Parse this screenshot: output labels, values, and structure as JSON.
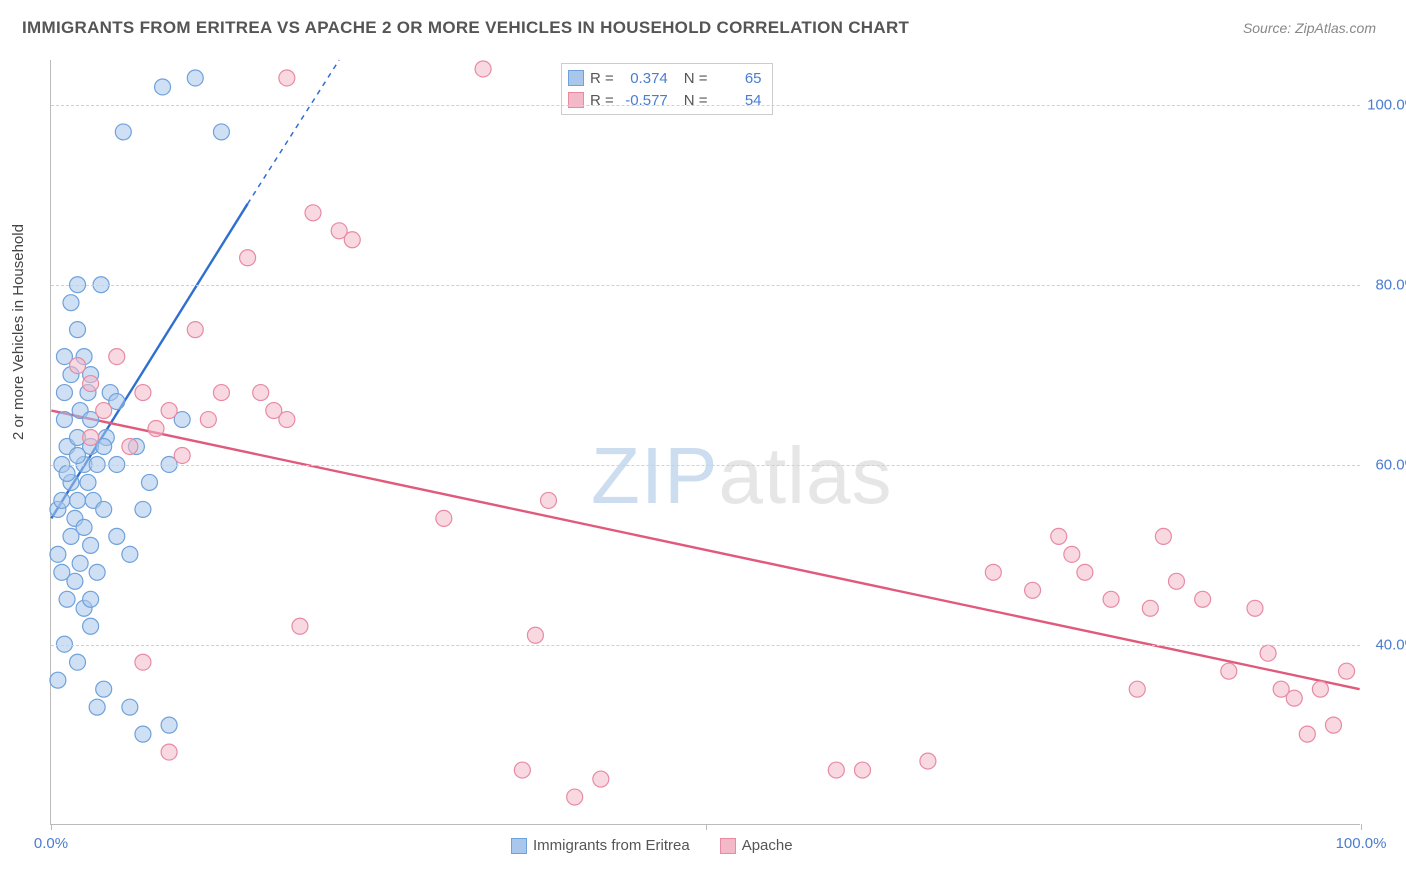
{
  "title": "IMMIGRANTS FROM ERITREA VS APACHE 2 OR MORE VEHICLES IN HOUSEHOLD CORRELATION CHART",
  "source": "Source: ZipAtlas.com",
  "y_axis_label": "2 or more Vehicles in Household",
  "watermark_a": "ZIP",
  "watermark_b": "atlas",
  "chart": {
    "type": "scatter",
    "xlim": [
      0,
      100
    ],
    "ylim": [
      20,
      105
    ],
    "y_ticks": [
      40,
      60,
      80,
      100
    ],
    "y_tick_labels": [
      "40.0%",
      "60.0%",
      "80.0%",
      "100.0%"
    ],
    "x_ticks": [
      0,
      50,
      100
    ],
    "x_tick_labels_shown": {
      "0": "0.0%",
      "100": "100.0%"
    },
    "grid_color": "#d0d0d0",
    "axis_color": "#bbbbbb",
    "background_color": "#ffffff",
    "marker_radius": 8,
    "marker_stroke_width": 1.2,
    "trend_line_width": 2.4,
    "series": [
      {
        "name": "Immigrants from Eritrea",
        "fill_color": "#a8c7eb",
        "stroke_color": "#6fa1db",
        "fill_opacity": 0.55,
        "R": "0.374",
        "N": "65",
        "trend": {
          "x1": 0,
          "y1": 54,
          "x2": 15,
          "y2": 89,
          "dashed_x2": 22,
          "dashed_y2": 105,
          "color": "#2e6fd1"
        },
        "points": [
          [
            0.5,
            55
          ],
          [
            0.5,
            50
          ],
          [
            0.8,
            48
          ],
          [
            0.8,
            60
          ],
          [
            1,
            65
          ],
          [
            1,
            68
          ],
          [
            1,
            72
          ],
          [
            1.2,
            45
          ],
          [
            1.2,
            62
          ],
          [
            1.5,
            58
          ],
          [
            1.5,
            52
          ],
          [
            1.5,
            70
          ],
          [
            1.8,
            54
          ],
          [
            1.8,
            47
          ],
          [
            2,
            63
          ],
          [
            2,
            75
          ],
          [
            2,
            80
          ],
          [
            2,
            56
          ],
          [
            2.2,
            49
          ],
          [
            2.2,
            66
          ],
          [
            2.5,
            60
          ],
          [
            2.5,
            53
          ],
          [
            2.5,
            44
          ],
          [
            2.8,
            68
          ],
          [
            2.8,
            58
          ],
          [
            3,
            62
          ],
          [
            3,
            51
          ],
          [
            3,
            45
          ],
          [
            3.2,
            56
          ],
          [
            3.5,
            48
          ],
          [
            3.5,
            60
          ],
          [
            3.8,
            80
          ],
          [
            4,
            55
          ],
          [
            4.2,
            63
          ],
          [
            4.5,
            68
          ],
          [
            5,
            52
          ],
          [
            5,
            60
          ],
          [
            5.5,
            97
          ],
          [
            6,
            50
          ],
          [
            6.5,
            62
          ],
          [
            7,
            55
          ],
          [
            7.5,
            58
          ],
          [
            8.5,
            102
          ],
          [
            9,
            60
          ],
          [
            10,
            65
          ],
          [
            11,
            103
          ],
          [
            13,
            97
          ],
          [
            0.5,
            36
          ],
          [
            1,
            40
          ],
          [
            2,
            38
          ],
          [
            3,
            42
          ],
          [
            3.5,
            33
          ],
          [
            4,
            35
          ],
          [
            6,
            33
          ],
          [
            7,
            30
          ],
          [
            9,
            31
          ],
          [
            3,
            70
          ],
          [
            4,
            62
          ],
          [
            5,
            67
          ],
          [
            1.5,
            78
          ],
          [
            2.5,
            72
          ],
          [
            0.8,
            56
          ],
          [
            1.2,
            59
          ],
          [
            2,
            61
          ],
          [
            3,
            65
          ]
        ]
      },
      {
        "name": "Apache",
        "fill_color": "#f4b9c8",
        "stroke_color": "#e88aa2",
        "fill_opacity": 0.55,
        "R": "-0.577",
        "N": "54",
        "trend": {
          "x1": 0,
          "y1": 66,
          "x2": 100,
          "y2": 35,
          "color": "#e05a7c"
        },
        "points": [
          [
            2,
            71
          ],
          [
            3,
            69
          ],
          [
            3,
            63
          ],
          [
            4,
            66
          ],
          [
            5,
            72
          ],
          [
            6,
            62
          ],
          [
            7,
            68
          ],
          [
            8,
            64
          ],
          [
            9,
            66
          ],
          [
            10,
            61
          ],
          [
            11,
            75
          ],
          [
            12,
            65
          ],
          [
            13,
            68
          ],
          [
            15,
            83
          ],
          [
            16,
            68
          ],
          [
            17,
            66
          ],
          [
            18,
            65
          ],
          [
            19,
            42
          ],
          [
            20,
            88
          ],
          [
            22,
            86
          ],
          [
            23,
            85
          ],
          [
            18,
            103
          ],
          [
            9,
            28
          ],
          [
            7,
            38
          ],
          [
            30,
            54
          ],
          [
            33,
            104
          ],
          [
            36,
            26
          ],
          [
            37,
            41
          ],
          [
            38,
            56
          ],
          [
            40,
            23
          ],
          [
            42,
            25
          ],
          [
            60,
            26
          ],
          [
            62,
            26
          ],
          [
            67,
            27
          ],
          [
            72,
            48
          ],
          [
            75,
            46
          ],
          [
            77,
            52
          ],
          [
            78,
            50
          ],
          [
            79,
            48
          ],
          [
            81,
            45
          ],
          [
            83,
            35
          ],
          [
            84,
            44
          ],
          [
            85,
            52
          ],
          [
            86,
            47
          ],
          [
            88,
            45
          ],
          [
            90,
            37
          ],
          [
            92,
            44
          ],
          [
            93,
            39
          ],
          [
            94,
            35
          ],
          [
            95,
            34
          ],
          [
            96,
            30
          ],
          [
            97,
            35
          ],
          [
            98,
            31
          ],
          [
            99,
            37
          ]
        ]
      }
    ]
  },
  "stats_legend": {
    "R_label": "R =",
    "N_label": "N ="
  },
  "bottom_legend_labels": [
    "Immigrants from Eritrea",
    "Apache"
  ]
}
